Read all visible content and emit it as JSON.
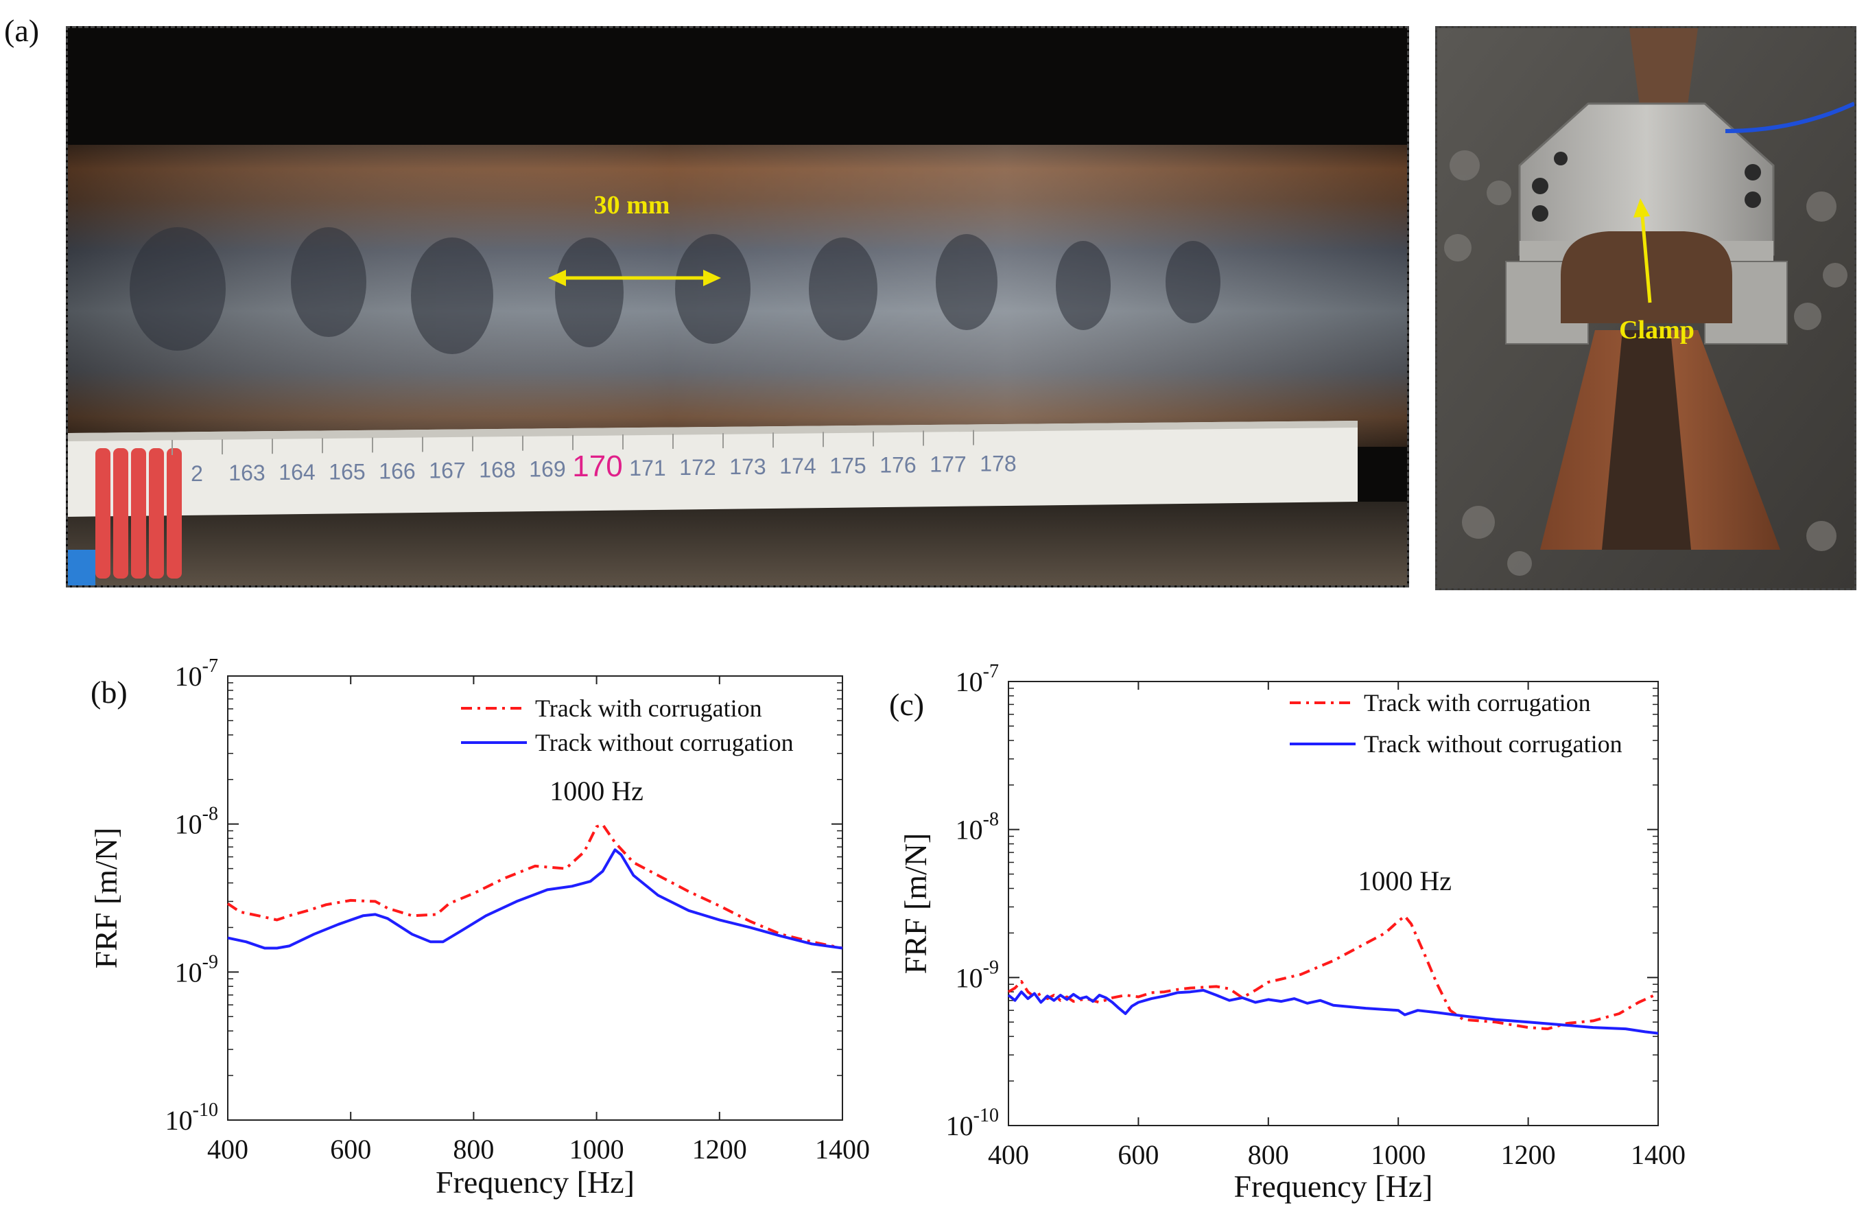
{
  "figure": {
    "panel_labels": [
      "(a)",
      "(b)",
      "(c)"
    ],
    "photo_left": {
      "annotation": "30 mm",
      "ruler_numbers": [
        "2",
        "163",
        "164",
        "165",
        "166",
        "167",
        "168",
        "169",
        "170",
        "171",
        "172",
        "173",
        "174",
        "175",
        "176",
        "177",
        "178"
      ],
      "highlight_number": "170",
      "colors": {
        "annotation": "#f2e600",
        "ruler_highlight": "#e0208a"
      }
    },
    "photo_right": {
      "annotation": "Clamp",
      "colors": {
        "annotation": "#f2e600"
      }
    }
  },
  "chart_data": [
    {
      "type": "line",
      "panel": "(b)",
      "xlabel": "Frequency [Hz]",
      "ylabel": "FRF [m/N]",
      "xlim": [
        400,
        1400
      ],
      "ylim": [
        1e-10,
        1e-07
      ],
      "yscale": "log",
      "x_ticks": [
        "400",
        "600",
        "800",
        "1000",
        "1200",
        "1400"
      ],
      "y_ticks": [
        {
          "base": "10",
          "exp": "-10"
        },
        {
          "base": "10",
          "exp": "-9"
        },
        {
          "base": "10",
          "exp": "-8"
        },
        {
          "base": "10",
          "exp": "-7"
        }
      ],
      "legend_position": "top-right",
      "annotation": {
        "text": "1000 Hz",
        "x": 1000,
        "y": 1.45e-08
      },
      "series": [
        {
          "name": "Track with corrugation",
          "color": "#ff1a1a",
          "style": "dashdot",
          "x": [
            400,
            420,
            450,
            480,
            500,
            530,
            560,
            600,
            640,
            660,
            700,
            740,
            760,
            800,
            850,
            900,
            950,
            980,
            1000,
            1010,
            1030,
            1060,
            1100,
            1150,
            1200,
            1250,
            1300,
            1350,
            1400
          ],
          "y": [
            2.9e-09,
            2.55e-09,
            2.4e-09,
            2.25e-09,
            2.4e-09,
            2.6e-09,
            2.85e-09,
            3.05e-09,
            3e-09,
            2.7e-09,
            2.4e-09,
            2.45e-09,
            2.9e-09,
            3.4e-09,
            4.3e-09,
            5.2e-09,
            5e-09,
            6.5e-09,
            9.6e-09,
            9.9e-09,
            7.5e-09,
            5.5e-09,
            4.5e-09,
            3.5e-09,
            2.8e-09,
            2.2e-09,
            1.8e-09,
            1.6e-09,
            1.45e-09
          ]
        },
        {
          "name": "Track without corrugation",
          "color": "#1f1fff",
          "style": "solid",
          "x": [
            400,
            430,
            460,
            480,
            500,
            540,
            580,
            620,
            640,
            660,
            700,
            730,
            750,
            780,
            820,
            870,
            920,
            960,
            990,
            1010,
            1030,
            1040,
            1060,
            1100,
            1150,
            1200,
            1250,
            1300,
            1350,
            1400
          ],
          "y": [
            1.7e-09,
            1.6e-09,
            1.45e-09,
            1.45e-09,
            1.5e-09,
            1.8e-09,
            2.1e-09,
            2.4e-09,
            2.45e-09,
            2.3e-09,
            1.8e-09,
            1.6e-09,
            1.6e-09,
            1.9e-09,
            2.4e-09,
            3e-09,
            3.6e-09,
            3.8e-09,
            4.1e-09,
            4.8e-09,
            6.7e-09,
            6.2e-09,
            4.5e-09,
            3.3e-09,
            2.6e-09,
            2.25e-09,
            2e-09,
            1.75e-09,
            1.55e-09,
            1.45e-09
          ]
        }
      ]
    },
    {
      "type": "line",
      "panel": "(c)",
      "xlabel": "Frequency [Hz]",
      "ylabel": "FRF [m/N]",
      "xlim": [
        400,
        1400
      ],
      "ylim": [
        1e-10,
        1e-07
      ],
      "yscale": "log",
      "x_ticks": [
        "400",
        "600",
        "800",
        "1000",
        "1200",
        "1400"
      ],
      "y_ticks": [
        {
          "base": "10",
          "exp": "-10"
        },
        {
          "base": "10",
          "exp": "-9"
        },
        {
          "base": "10",
          "exp": "-8"
        },
        {
          "base": "10",
          "exp": "-7"
        }
      ],
      "legend_position": "top-right",
      "annotation": {
        "text": "1000 Hz",
        "x": 1010,
        "y": 3.9e-09
      },
      "series": [
        {
          "name": "Track with corrugation",
          "color": "#ff1a1a",
          "style": "dashdot",
          "x": [
            400,
            410,
            420,
            430,
            440,
            450,
            460,
            470,
            480,
            490,
            500,
            520,
            540,
            560,
            580,
            600,
            620,
            640,
            660,
            680,
            700,
            720,
            740,
            760,
            780,
            800,
            850,
            900,
            950,
            980,
            1000,
            1010,
            1020,
            1040,
            1060,
            1080,
            1100,
            1150,
            1200,
            1230,
            1260,
            1300,
            1340,
            1370,
            1400
          ],
          "y": [
            8e-10,
            8.5e-10,
            9.4e-10,
            8e-10,
            7.4e-10,
            7.8e-10,
            7.2e-10,
            7.6e-10,
            7e-10,
            7.4e-10,
            6.9e-10,
            7.2e-10,
            6.8e-10,
            7.3e-10,
            7.6e-10,
            7.4e-10,
            7.9e-10,
            8e-10,
            8.3e-10,
            8.5e-10,
            8.6e-10,
            8.7e-10,
            8.4e-10,
            7.3e-10,
            8.2e-10,
            9.3e-10,
            1.05e-09,
            1.3e-09,
            1.7e-09,
            2e-09,
            2.4e-09,
            2.6e-09,
            2.3e-09,
            1.45e-09,
            9e-10,
            6e-10,
            5.2e-10,
            5e-10,
            4.6e-10,
            4.5e-10,
            4.9e-10,
            5.1e-10,
            5.7e-10,
            6.8e-10,
            7.8e-10
          ]
        },
        {
          "name": "Track without corrugation",
          "color": "#1f1fff",
          "style": "solid",
          "x": [
            400,
            410,
            420,
            430,
            440,
            450,
            460,
            470,
            480,
            490,
            500,
            510,
            520,
            530,
            540,
            550,
            560,
            570,
            580,
            590,
            600,
            620,
            640,
            660,
            680,
            700,
            720,
            740,
            760,
            780,
            800,
            820,
            840,
            860,
            880,
            900,
            950,
            1000,
            1010,
            1030,
            1060,
            1100,
            1150,
            1200,
            1250,
            1300,
            1350,
            1380,
            1400
          ],
          "y": [
            7.6e-10,
            7e-10,
            8e-10,
            7.2e-10,
            7.8e-10,
            6.8e-10,
            7.5e-10,
            7e-10,
            7.6e-10,
            7.1e-10,
            7.7e-10,
            7.2e-10,
            7.4e-10,
            6.9e-10,
            7.6e-10,
            7.3e-10,
            6.8e-10,
            6.2e-10,
            5.7e-10,
            6.4e-10,
            6.8e-10,
            7.2e-10,
            7.5e-10,
            7.9e-10,
            8e-10,
            8.2e-10,
            7.6e-10,
            7e-10,
            7.3e-10,
            6.8e-10,
            7.1e-10,
            6.9e-10,
            7.2e-10,
            6.7e-10,
            7e-10,
            6.5e-10,
            6.2e-10,
            6e-10,
            5.6e-10,
            6e-10,
            5.8e-10,
            5.5e-10,
            5.2e-10,
            5e-10,
            4.8e-10,
            4.6e-10,
            4.5e-10,
            4.3e-10,
            4.2e-10
          ]
        }
      ]
    }
  ]
}
